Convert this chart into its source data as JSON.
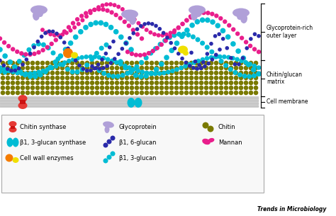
{
  "background_color": "#ffffff",
  "figure_width": 4.74,
  "figure_height": 3.05,
  "dpi": 100,
  "colors": {
    "cyan": "#00bcd4",
    "magenta": "#e91e8c",
    "dark_blue": "#2a2aaa",
    "olive": "#7a7a00",
    "red": "#e53935",
    "orange": "#f57c00",
    "yellow": "#f0e000",
    "lavender": "#b0a0d8",
    "gray_membrane": "#cccccc",
    "light_gray": "#f8f8f8",
    "border_gray": "#aaaaaa"
  },
  "labels": {
    "glycoprotein_rich": "Glycoprotein-rich\nouter layer",
    "chitin_glucan": "Chitin/glucan\nmatrix",
    "cell_membrane": "Cell membrane",
    "trends": "Trends in Microbiology"
  }
}
